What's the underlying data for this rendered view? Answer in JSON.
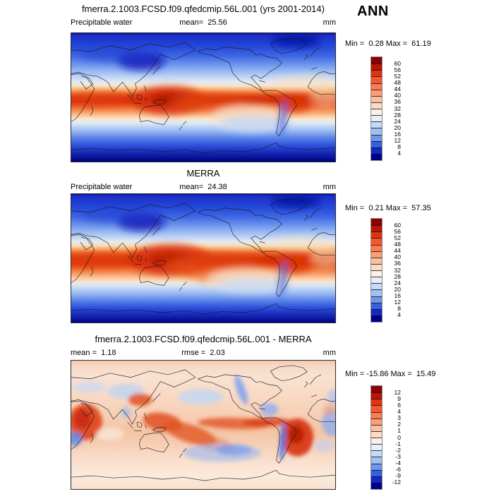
{
  "season_label": "ANN",
  "palette": {
    "colors_top_to_bottom": [
      "#8B0000",
      "#BE1406",
      "#E23310",
      "#F4572E",
      "#F97C52",
      "#FB9E78",
      "#FCBFA0",
      "#FDDAC4",
      "#FEF0E4",
      "#E6EFFB",
      "#C5DAF6",
      "#A0C0F1",
      "#6E96EC",
      "#3560E2",
      "#1528C4",
      "#00008B"
    ],
    "segment_divider": "#111111",
    "frame": "#8a8a8a"
  },
  "panels": [
    {
      "title": "fmerra.2.1003.FCSD.f09.qfedcmip.56L.001 (yrs 2001-2014)",
      "field_label": "Precipitable water",
      "mean_text": "mean=  25.56",
      "units": "mm",
      "minmax_text": "Min =  0.28 Max =  61.19",
      "colorbar_labels": [
        "60",
        "56",
        "52",
        "48",
        "44",
        "40",
        "36",
        "32",
        "28",
        "24",
        "20",
        "16",
        "12",
        "8",
        "4"
      ]
    },
    {
      "title": "MERRA",
      "field_label": "Precipitable water",
      "mean_text": "mean=  24.38",
      "units": "mm",
      "minmax_text": "Min =  0.21 Max =  57.35",
      "colorbar_labels": [
        "60",
        "56",
        "52",
        "48",
        "44",
        "40",
        "36",
        "32",
        "28",
        "24",
        "20",
        "16",
        "12",
        "8",
        "4"
      ]
    },
    {
      "title": "fmerra.2.1003.FCSD.f09.qfedcmip.56L.001 - MERRA",
      "mean_text": "mean =  1.18",
      "rmse_text": "rmse =  2.03",
      "units": "mm",
      "minmax_text": "Min = -15.86 Max =  15.49",
      "colorbar_labels": [
        "12",
        "9",
        "6",
        "4",
        "3",
        "2",
        "1",
        "0",
        "-1",
        "-2",
        "-3",
        "-4",
        "-6",
        "-9",
        "-12"
      ]
    }
  ],
  "chart_data": [
    {
      "type": "heatmap",
      "panel": "model",
      "title": "fmerra.2.1003.FCSD.f09.qfedcmip.56L.001 (yrs 2001-2014)",
      "variable": "Precipitable water",
      "season": "ANN",
      "units": "mm",
      "mean": 25.56,
      "min": 0.28,
      "max": 61.19,
      "contour_levels": [
        4,
        8,
        12,
        16,
        20,
        24,
        28,
        32,
        36,
        40,
        44,
        48,
        52,
        56,
        60
      ],
      "colormap_top_to_bottom": [
        "#8B0000",
        "#BE1406",
        "#E23310",
        "#F4572E",
        "#F97C52",
        "#FB9E78",
        "#FCBFA0",
        "#FDDAC4",
        "#FEF0E4",
        "#E6EFFB",
        "#C5DAF6",
        "#A0C0F1",
        "#6E96EC",
        "#3560E2",
        "#1528C4",
        "#00008B"
      ],
      "map": "global latitude-longitude world map with coastlines, Pacific-centered",
      "pattern": "high values 40-60 mm (red) in tropical band along the equator, maximum over Indonesia/west Pacific and Amazon; low values <8 mm (dark blue) at both poles, over Tibet and the Andes"
    },
    {
      "type": "heatmap",
      "panel": "observations",
      "title": "MERRA",
      "variable": "Precipitable water",
      "season": "ANN",
      "units": "mm",
      "mean": 24.38,
      "min": 0.21,
      "max": 57.35,
      "contour_levels": [
        4,
        8,
        12,
        16,
        20,
        24,
        28,
        32,
        36,
        40,
        44,
        48,
        52,
        56,
        60
      ],
      "map": "global latitude-longitude world map with coastlines, Pacific-centered",
      "pattern": "same structure as model: broad equatorial red band, dark blue poles and high terrain"
    },
    {
      "type": "heatmap",
      "panel": "difference",
      "title": "fmerra.2.1003.FCSD.f09.qfedcmip.56L.001 - MERRA",
      "variable": "Precipitable water difference (model minus MERRA)",
      "units": "mm",
      "mean": 1.18,
      "rmse": 2.03,
      "min": -15.86,
      "max": 15.49,
      "contour_levels": [
        -12,
        -9,
        -6,
        -4,
        -3,
        -2,
        -1,
        0,
        1,
        2,
        3,
        4,
        6,
        9,
        12
      ],
      "map": "global latitude-longitude world map with coastlines, Pacific-centered",
      "pattern": "mostly weak positive bias (pale red); strong positive over Africa, South America, Indonesia and equatorial east Pacific; negative (blue) over subtropical south Pacific, west coast of North America, Caribbean and Atlantic"
    }
  ]
}
